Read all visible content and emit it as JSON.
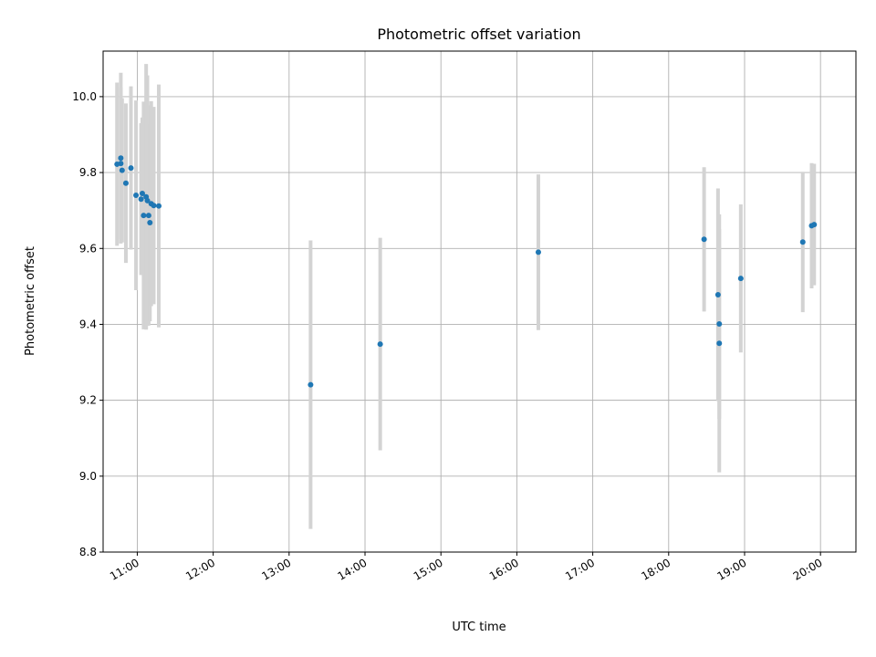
{
  "chart_data": {
    "type": "scatter",
    "title": "Photometric offset variation",
    "xlabel": "UTC time",
    "ylabel": "Photometric offset",
    "x_axis_kind": "time",
    "xlim": [
      "10:33",
      "20:28"
    ],
    "ylim": [
      8.8,
      10.12
    ],
    "x_ticks": [
      "11:00",
      "12:00",
      "13:00",
      "14:00",
      "15:00",
      "16:00",
      "17:00",
      "18:00",
      "19:00",
      "20:00"
    ],
    "y_ticks": [
      "8.8",
      "9.0",
      "9.2",
      "9.4",
      "9.6",
      "9.8",
      "10.0"
    ],
    "grid": true,
    "colors": {
      "point": "#1f77b4",
      "errorbar": "#d3d3d3",
      "grid": "#b0b0b0"
    },
    "series": [
      {
        "points": [
          {
            "x": "10:44",
            "y": 9.822,
            "yerr": 0.215
          },
          {
            "x": "10:47",
            "y": 9.838,
            "yerr": 0.225
          },
          {
            "x": "10:47",
            "y": 9.824,
            "yerr": 0.2
          },
          {
            "x": "10:48",
            "y": 9.806,
            "yerr": 0.19
          },
          {
            "x": "10:51",
            "y": 9.772,
            "yerr": 0.21
          },
          {
            "x": "10:55",
            "y": 9.812,
            "yerr": 0.215
          },
          {
            "x": "10:59",
            "y": 9.74,
            "yerr": 0.25
          },
          {
            "x": "11:03",
            "y": 9.73,
            "yerr": 0.2
          },
          {
            "x": "11:04",
            "y": 9.745,
            "yerr": 0.2
          },
          {
            "x": "11:05",
            "y": 9.687,
            "yerr": 0.3
          },
          {
            "x": "11:07",
            "y": 9.736,
            "yerr": 0.35
          },
          {
            "x": "11:08",
            "y": 9.726,
            "yerr": 0.33
          },
          {
            "x": "11:09",
            "y": 9.687,
            "yerr": 0.29
          },
          {
            "x": "11:10",
            "y": 9.668,
            "yerr": 0.26
          },
          {
            "x": "11:11",
            "y": 9.718,
            "yerr": 0.27
          },
          {
            "x": "11:13",
            "y": 9.713,
            "yerr": 0.26
          },
          {
            "x": "11:17",
            "y": 9.712,
            "yerr": 0.32
          },
          {
            "x": "13:17",
            "y": 9.241,
            "yerr": 0.38
          },
          {
            "x": "14:12",
            "y": 9.348,
            "yerr": 0.28
          },
          {
            "x": "16:17",
            "y": 9.59,
            "yerr": 0.205
          },
          {
            "x": "18:28",
            "y": 9.624,
            "yerr": 0.19
          },
          {
            "x": "18:39",
            "y": 9.478,
            "yerr": 0.28
          },
          {
            "x": "18:40",
            "y": 9.401,
            "yerr": 0.25
          },
          {
            "x": "18:40",
            "y": 9.35,
            "yerr": 0.34
          },
          {
            "x": "18:57",
            "y": 9.521,
            "yerr": 0.195
          },
          {
            "x": "19:46",
            "y": 9.617,
            "yerr": 0.185
          },
          {
            "x": "19:53",
            "y": 9.66,
            "yerr": 0.165
          },
          {
            "x": "19:55",
            "y": 9.663,
            "yerr": 0.16
          }
        ]
      }
    ]
  }
}
